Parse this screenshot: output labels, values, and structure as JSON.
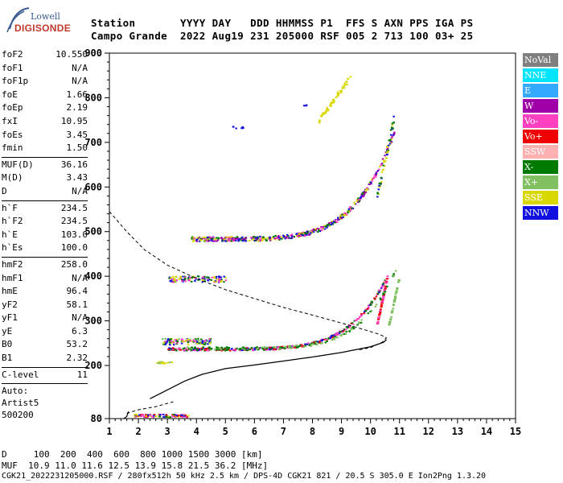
{
  "logo": {
    "line1": "Lowell",
    "line2": "DIGISONDE"
  },
  "header": {
    "row1": "Station       YYYY DAY   DDD HHMMSS P1  FFS S AXN PPS IGA PS",
    "row2": "Campo Grande  2022 Aug19 231 205000 RSF 005 2 713 100 03+ 25"
  },
  "params": {
    "group1": [
      {
        "k": "foF2",
        "v": "10.550"
      },
      {
        "k": "foF1",
        "v": "N/A"
      },
      {
        "k": "foF1p",
        "v": "N/A"
      },
      {
        "k": "foE",
        "v": "1.66"
      },
      {
        "k": "foEp",
        "v": "2.19"
      },
      {
        "k": "fxI",
        "v": "10.95"
      },
      {
        "k": "foEs",
        "v": "3.45"
      },
      {
        "k": "fmin",
        "v": "1.50"
      }
    ],
    "group2": [
      {
        "k": "MUF(D)",
        "v": "36.16"
      },
      {
        "k": "M(D)",
        "v": "3.43"
      },
      {
        "k": "D",
        "v": "N/A"
      }
    ],
    "group3": [
      {
        "k": "h`F",
        "v": "234.5"
      },
      {
        "k": "h`F2",
        "v": "234.5"
      },
      {
        "k": "h`E",
        "v": "103.0"
      },
      {
        "k": "h`Es",
        "v": "100.0"
      }
    ],
    "group4": [
      {
        "k": "hmF2",
        "v": "258.0"
      },
      {
        "k": "hmF1",
        "v": "N/A"
      },
      {
        "k": "hmE",
        "v": "96.4"
      },
      {
        "k": "yF2",
        "v": "58.1"
      },
      {
        "k": "yF1",
        "v": "N/A"
      },
      {
        "k": "yE",
        "v": "6.3"
      },
      {
        "k": "B0",
        "v": "53.2"
      },
      {
        "k": "B1",
        "v": "2.32"
      }
    ],
    "group5": [
      {
        "k": "C-level",
        "v": "11"
      }
    ],
    "auto": [
      "Auto:",
      "Artist5",
      "500200"
    ]
  },
  "axes": {
    "x_ticks": [
      "1",
      "2",
      "3",
      "4",
      "5",
      "6",
      "7",
      "8",
      "9",
      "10",
      "11",
      "12",
      "13",
      "14",
      "15"
    ],
    "y_ticks": [
      "900",
      "800",
      "700",
      "600",
      "500",
      "400",
      "300",
      "200",
      "80"
    ]
  },
  "legend": [
    {
      "label": "NoVal",
      "color": "#808080"
    },
    {
      "label": "NNE",
      "color": "#00e5ff"
    },
    {
      "label": "E",
      "color": "#33aaff"
    },
    {
      "label": "W",
      "color": "#a000a8"
    },
    {
      "label": "Vo-",
      "color": "#ff40c0"
    },
    {
      "label": "Vo+",
      "color": "#f00000"
    },
    {
      "label": "SSW",
      "color": "#ffb0b0"
    },
    {
      "label": "X-",
      "color": "#007a00"
    },
    {
      "label": "X+",
      "color": "#80c060"
    },
    {
      "label": "SSE",
      "color": "#d8d800"
    },
    {
      "label": "NNW",
      "color": "#1010e0"
    }
  ],
  "footer": {
    "line1": "D     100  200  400  600  800 1000 1500 3000 [km]",
    "line2": "MUF  10.9 11.0 11.6 12.5 13.9 15.8 21.5 36.2 [MHz]",
    "line3": "CGK21_2022231205000.RSF / 280fx512h 50 kHz 2.5 km / DPS-4D CGK21 821 / 20.5 S 305.0 E Ion2Png 1.3.20"
  }
}
